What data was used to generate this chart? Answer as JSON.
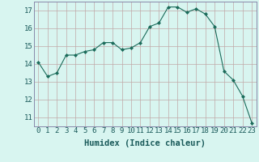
{
  "x": [
    0,
    1,
    2,
    3,
    4,
    5,
    6,
    7,
    8,
    9,
    10,
    11,
    12,
    13,
    14,
    15,
    16,
    17,
    18,
    19,
    20,
    21,
    22,
    23
  ],
  "y": [
    14.1,
    13.3,
    13.5,
    14.5,
    14.5,
    14.7,
    14.8,
    15.2,
    15.2,
    14.8,
    14.9,
    15.2,
    16.1,
    16.3,
    17.2,
    17.2,
    16.9,
    17.1,
    16.8,
    16.1,
    13.6,
    13.1,
    12.2,
    10.7
  ],
  "line_color": "#1a6b5a",
  "marker": "D",
  "marker_size": 2,
  "bg_color": "#d8f5f0",
  "grid_color": "#c0a8a8",
  "xlabel": "Humidex (Indice chaleur)",
  "xlim": [
    -0.5,
    23.5
  ],
  "ylim": [
    10.5,
    17.5
  ],
  "yticks": [
    11,
    12,
    13,
    14,
    15,
    16,
    17
  ],
  "xticks": [
    0,
    1,
    2,
    3,
    4,
    5,
    6,
    7,
    8,
    9,
    10,
    11,
    12,
    13,
    14,
    15,
    16,
    17,
    18,
    19,
    20,
    21,
    22,
    23
  ],
  "label_fontsize": 7.5,
  "tick_fontsize": 6.5
}
